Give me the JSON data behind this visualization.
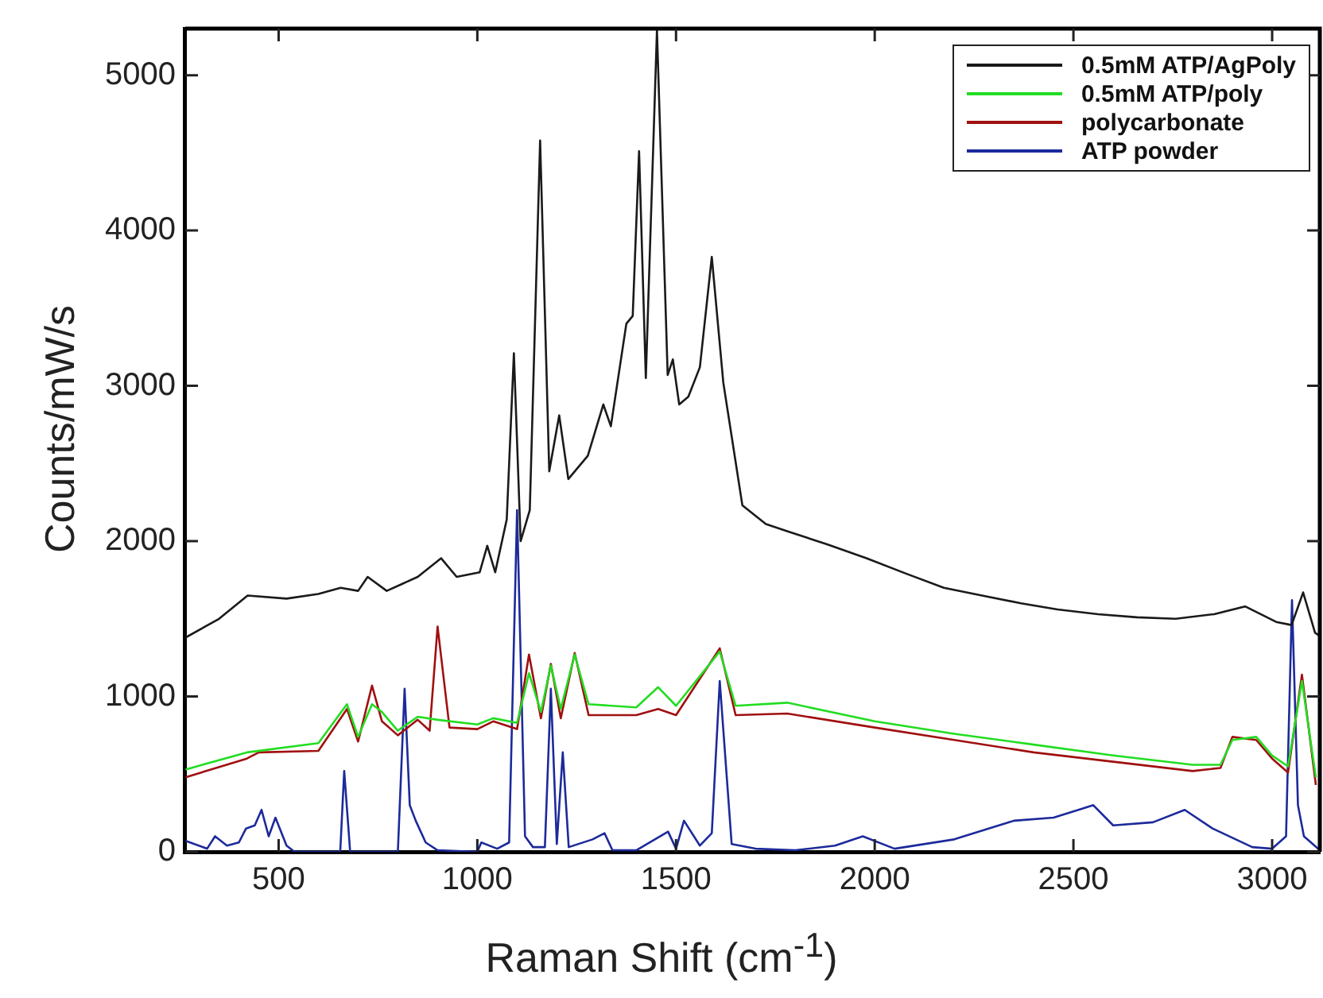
{
  "chart_data": {
    "type": "line",
    "xlabel": "Raman Shift (cm$^{-1}$)",
    "ylabel": "Counts/mW/s",
    "xlim": [
      265,
      3120
    ],
    "xticks": [
      500,
      1000,
      1500,
      2000,
      2500,
      3000
    ],
    "ylim": [
      0,
      5300
    ],
    "yticks": [
      0,
      1000,
      2000,
      3000,
      4000,
      5000
    ],
    "grid": false,
    "legend": "top right",
    "marker": "none",
    "line_style": "solid",
    "series": [
      {
        "name": "0.5mM ATP/AgPoly",
        "color": "#1a1a1a",
        "x": [
          266,
          350,
          422,
          520,
          600,
          656,
          700,
          724,
          772,
          850,
          909,
          948,
          1006,
          1025,
          1045,
          1074,
          1092,
          1109,
          1132,
          1158,
          1181,
          1206,
          1229,
          1278,
          1317,
          1336,
          1375,
          1391,
          1407,
          1424,
          1452,
          1479,
          1492,
          1508,
          1531,
          1560,
          1590,
          1619,
          1667,
          1726,
          1784,
          1880,
          1979,
          2080,
          2174,
          2270,
          2368,
          2460,
          2562,
          2660,
          2757,
          2854,
          2932,
          3010,
          3049,
          3078,
          3108,
          3120
        ],
        "values": [
          1380,
          1500,
          1650,
          1630,
          1660,
          1700,
          1680,
          1770,
          1680,
          1770,
          1890,
          1770,
          1800,
          1970,
          1800,
          2140,
          3210,
          2000,
          2200,
          4580,
          2450,
          2810,
          2400,
          2550,
          2880,
          2740,
          3400,
          3450,
          4510,
          3050,
          5290,
          3070,
          3170,
          2880,
          2930,
          3120,
          3830,
          3020,
          2230,
          2110,
          2060,
          1980,
          1890,
          1790,
          1700,
          1650,
          1600,
          1560,
          1530,
          1510,
          1500,
          1530,
          1580,
          1480,
          1460,
          1670,
          1410,
          1390
        ]
      },
      {
        "name": "0.5mM ATP/poly",
        "color": "#22dd22",
        "x": [
          266,
          420,
          600,
          672,
          700,
          735,
          760,
          800,
          850,
          900,
          1000,
          1040,
          1100,
          1130,
          1160,
          1185,
          1210,
          1245,
          1280,
          1400,
          1455,
          1500,
          1610,
          1650,
          1780,
          2000,
          2200,
          2400,
          2600,
          2800,
          2870,
          2900,
          2960,
          3000,
          3040,
          3075,
          3110
        ],
        "values": [
          530,
          640,
          700,
          950,
          740,
          950,
          900,
          780,
          870,
          850,
          820,
          860,
          830,
          1150,
          900,
          1200,
          920,
          1270,
          950,
          930,
          1060,
          940,
          1290,
          940,
          960,
          840,
          760,
          690,
          620,
          560,
          560,
          720,
          740,
          620,
          550,
          1100,
          480
        ]
      },
      {
        "name": "polycarbonate",
        "color": "#a01010",
        "x": [
          266,
          420,
          450,
          600,
          672,
          700,
          735,
          760,
          800,
          850,
          880,
          900,
          930,
          1000,
          1040,
          1100,
          1130,
          1160,
          1185,
          1210,
          1245,
          1280,
          1400,
          1455,
          1500,
          1610,
          1650,
          1780,
          2000,
          2200,
          2400,
          2600,
          2800,
          2870,
          2900,
          2960,
          3000,
          3040,
          3075,
          3110
        ],
        "values": [
          480,
          600,
          640,
          650,
          920,
          710,
          1070,
          840,
          750,
          850,
          780,
          1450,
          800,
          790,
          840,
          790,
          1270,
          860,
          1210,
          860,
          1280,
          880,
          880,
          920,
          880,
          1310,
          880,
          890,
          800,
          720,
          640,
          580,
          520,
          540,
          740,
          720,
          600,
          510,
          1140,
          430
        ]
      },
      {
        "name": "ATP powder",
        "color": "#1c2a9a",
        "x": [
          266,
          320,
          340,
          370,
          400,
          418,
          440,
          457,
          475,
          492,
          520,
          540,
          560,
          655,
          665,
          680,
          800,
          817,
          830,
          845,
          870,
          900,
          1000,
          1010,
          1050,
          1080,
          1100,
          1120,
          1140,
          1170,
          1185,
          1200,
          1215,
          1230,
          1290,
          1320,
          1340,
          1400,
          1480,
          1500,
          1520,
          1560,
          1590,
          1610,
          1640,
          1700,
          1800,
          1900,
          1970,
          2050,
          2200,
          2350,
          2450,
          2550,
          2600,
          2700,
          2780,
          2850,
          2950,
          3000,
          3035,
          3050,
          3065,
          3080,
          3120
        ],
        "values": [
          70,
          20,
          100,
          40,
          60,
          150,
          170,
          270,
          100,
          220,
          40,
          0,
          0,
          0,
          520,
          0,
          0,
          1050,
          300,
          200,
          60,
          10,
          0,
          60,
          20,
          60,
          2200,
          100,
          30,
          30,
          1050,
          50,
          640,
          30,
          80,
          120,
          10,
          10,
          130,
          20,
          200,
          40,
          120,
          1100,
          50,
          20,
          10,
          40,
          100,
          20,
          80,
          200,
          220,
          300,
          170,
          190,
          270,
          150,
          30,
          20,
          100,
          1620,
          300,
          100,
          10
        ]
      }
    ]
  }
}
